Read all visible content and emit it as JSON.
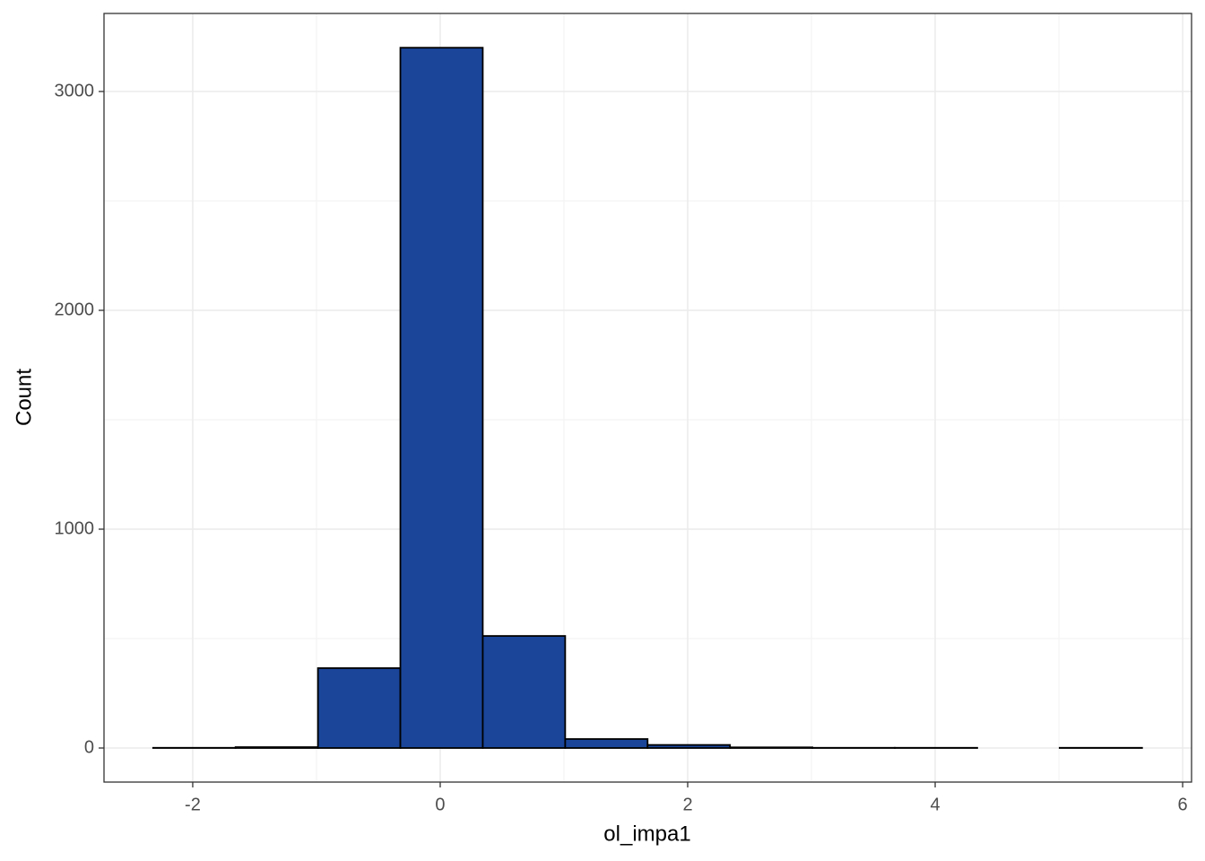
{
  "chart_data": {
    "type": "histogram",
    "x_label": "ol_impa1",
    "y_label": "Count",
    "bins": [
      -2.32,
      -1.654,
      -0.988,
      -0.322,
      0.344,
      1.01,
      1.676,
      2.342,
      3.008,
      3.674,
      4.34,
      5.006,
      5.672
    ],
    "values": [
      1,
      4,
      365,
      3200,
      512,
      41,
      14,
      3,
      1,
      1,
      0,
      1
    ],
    "color": "#1a4599",
    "edge_color": "#000000",
    "xlim": [
      -2.717,
      6.072
    ],
    "ylim": [
      -155.7,
      3356.6
    ],
    "xticks": [
      -2,
      0,
      2,
      4,
      6
    ],
    "yticks": [
      0,
      1000,
      2000,
      3000
    ],
    "grid": true
  }
}
